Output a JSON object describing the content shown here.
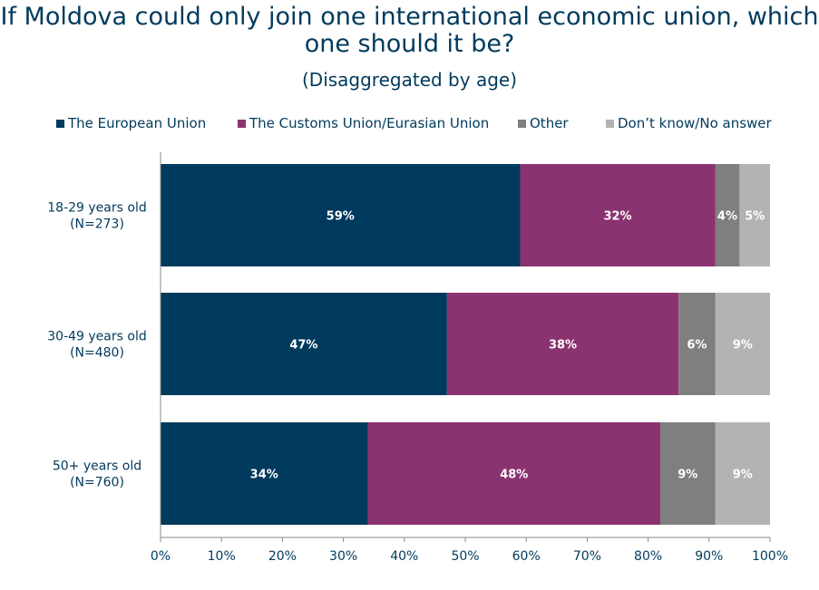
{
  "chart_data": {
    "type": "bar",
    "orientation": "horizontal",
    "stacked": true,
    "title_lines": [
      "If Moldova could only join one international economic union, which",
      "one should it be?"
    ],
    "subtitle": "(Disaggregated by age)",
    "categories": [
      [
        "18-29 years old",
        "(N=273)"
      ],
      [
        "30-49 years old",
        "(N=480)"
      ],
      [
        "50+ years old",
        "(N=760)"
      ]
    ],
    "series": [
      {
        "name": "The European Union",
        "color": "#003a5c",
        "values": [
          59,
          47,
          34
        ],
        "labels": [
          "59%",
          "47%",
          "34%"
        ]
      },
      {
        "name": "The Customs Union/Eurasian Union",
        "color": "#8b3270",
        "values": [
          32,
          38,
          48
        ],
        "labels": [
          "32%",
          "38%",
          "48%"
        ]
      },
      {
        "name": "Other",
        "color": "#7f7f7f",
        "values": [
          4,
          6,
          9
        ],
        "labels": [
          "4%",
          "6%",
          "9%"
        ]
      },
      {
        "name": "Don’t know/No answer",
        "color": "#b3b3b5",
        "values": [
          5,
          9,
          9
        ],
        "labels": [
          "5%",
          "9%",
          "9%"
        ]
      }
    ],
    "xlim": [
      0,
      100
    ],
    "xticks": [
      0,
      10,
      20,
      30,
      40,
      50,
      60,
      70,
      80,
      90,
      100
    ],
    "xtick_labels": [
      "0%",
      "10%",
      "20%",
      "30%",
      "40%",
      "50%",
      "60%",
      "70%",
      "80%",
      "90%",
      "100%"
    ],
    "legend_position": "top",
    "grid": false
  }
}
